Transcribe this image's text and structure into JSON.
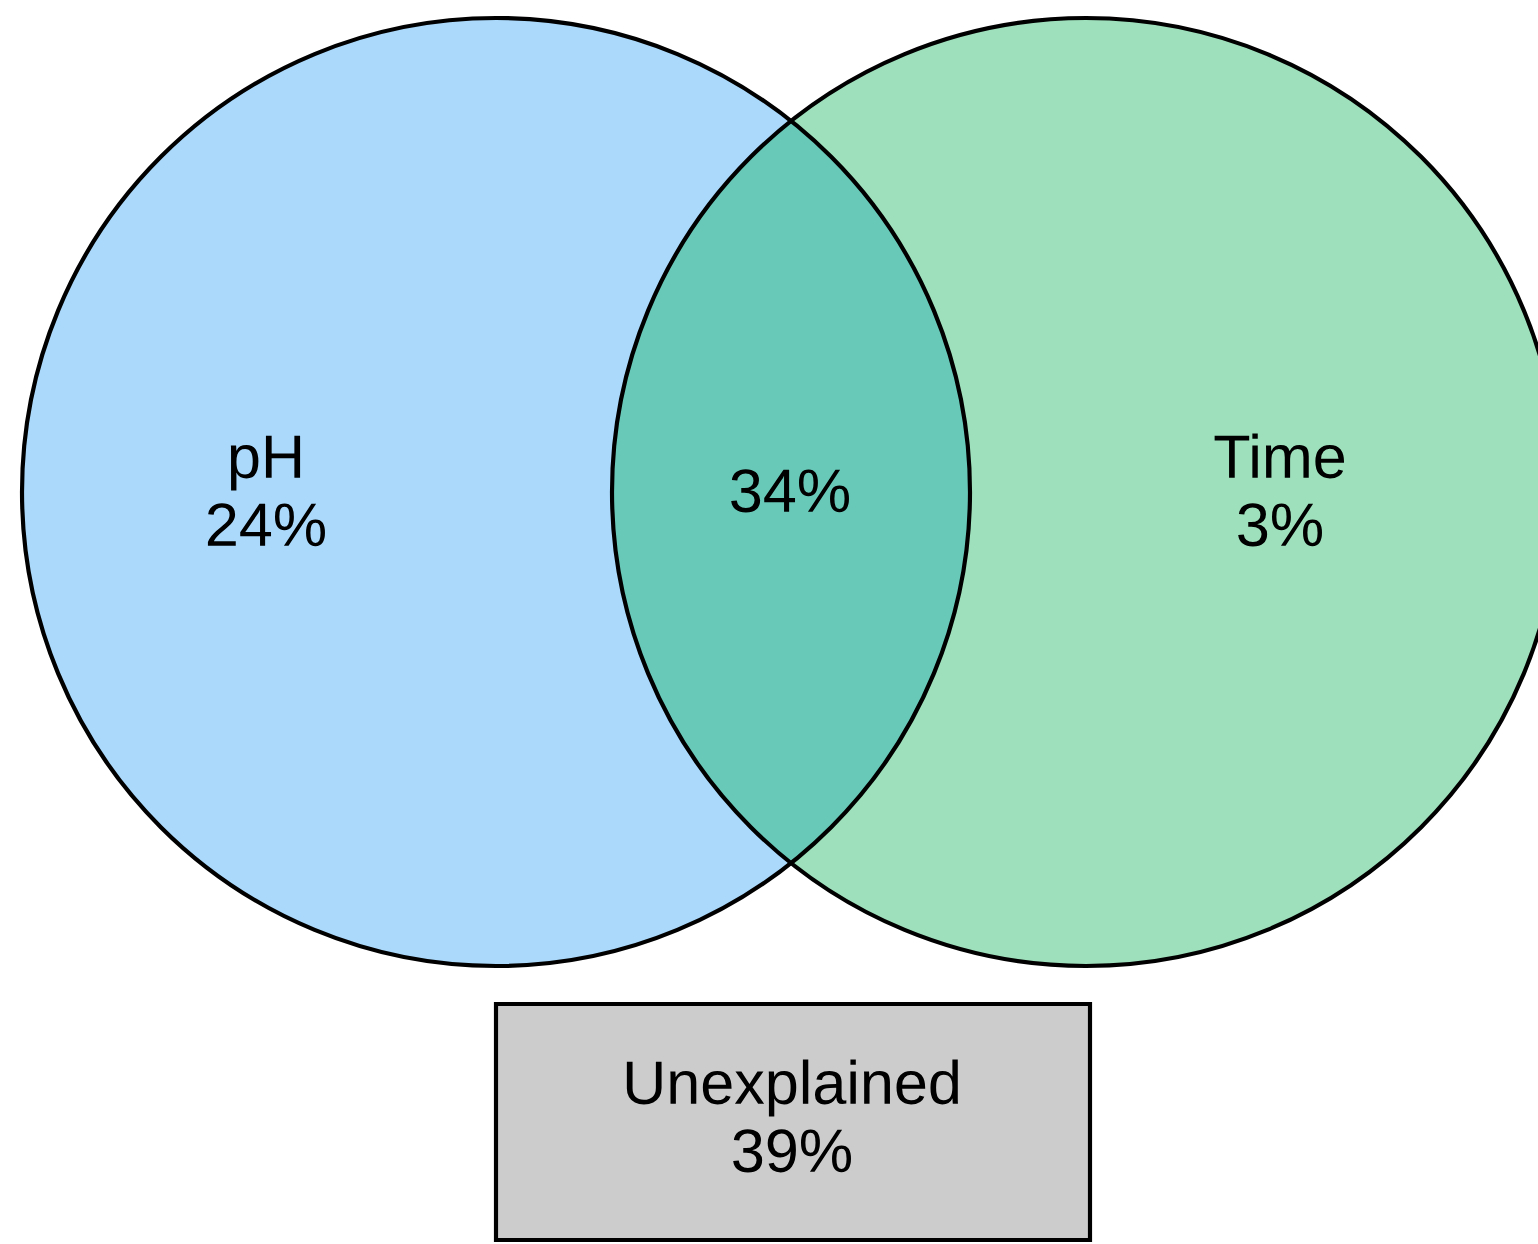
{
  "chart_data": {
    "type": "other",
    "categories": [
      "pH",
      null,
      "Time",
      "Unexplained"
    ],
    "values": [
      24,
      34,
      3,
      39
    ],
    "value_labels": [
      "24%",
      "34%",
      "3%",
      "39%"
    ],
    "colors": [
      "#aad9fb",
      "#69c9b9",
      "#9ee0bc",
      "#cccccc"
    ]
  }
}
